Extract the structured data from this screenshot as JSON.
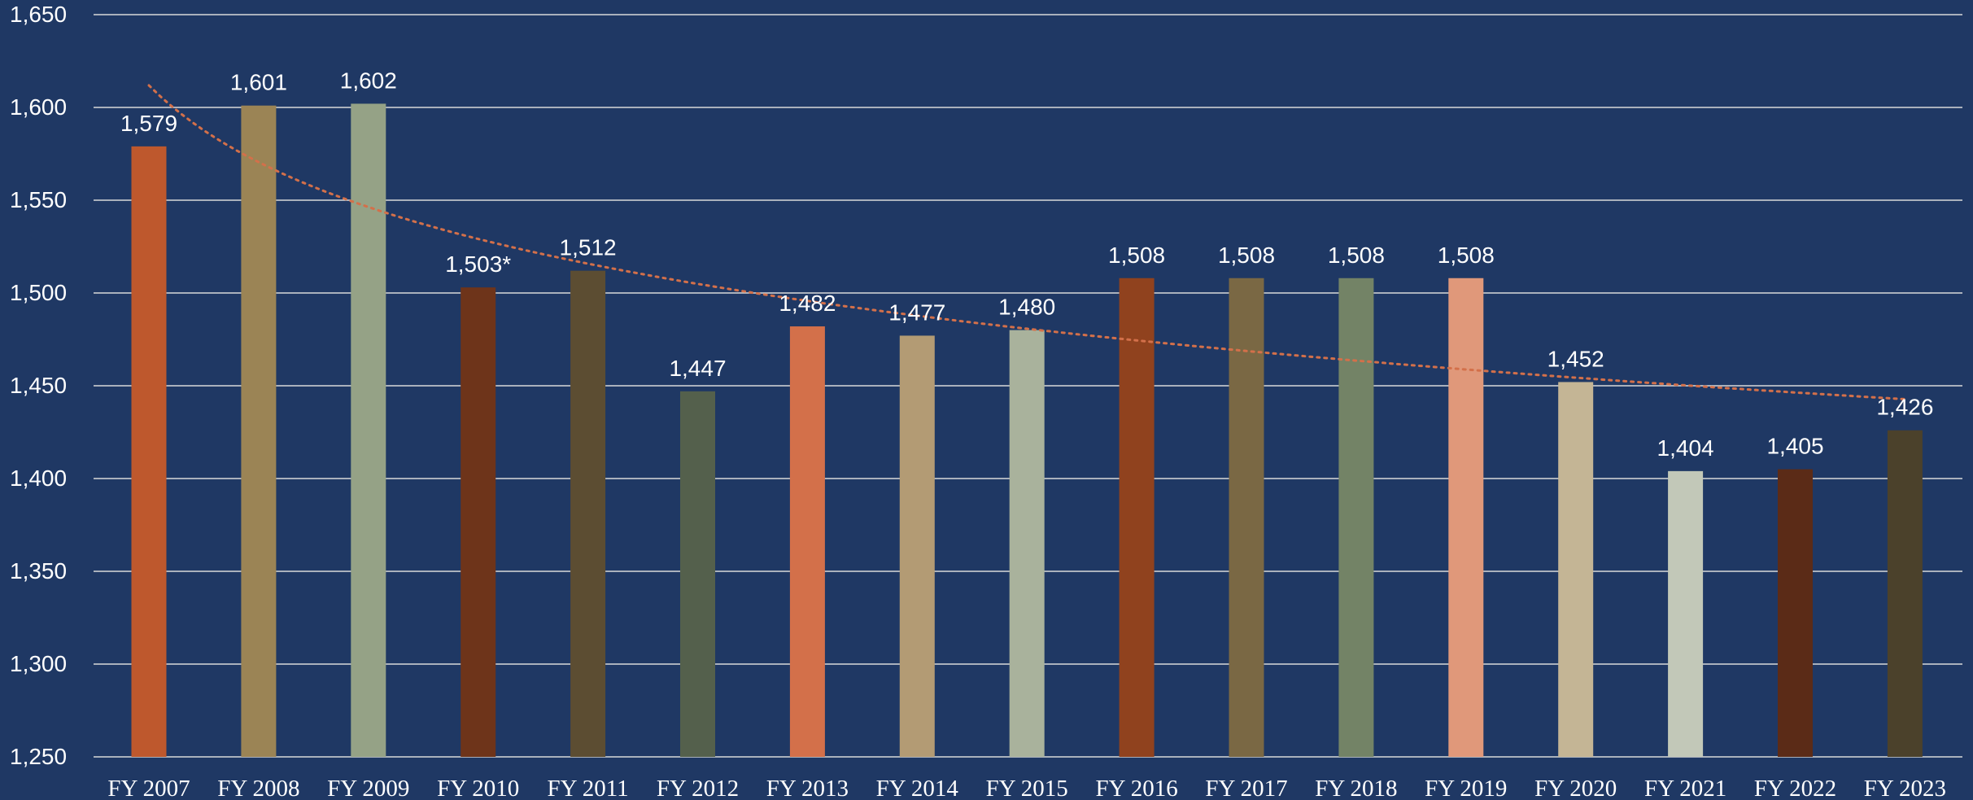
{
  "chart_data": {
    "type": "bar",
    "title": "",
    "xlabel": "",
    "ylabel": "",
    "categories": [
      "FY 2007",
      "FY 2008",
      "FY 2009",
      "FY 2010",
      "FY 2011",
      "FY 2012",
      "FY 2013",
      "FY 2014",
      "FY 2015",
      "FY 2016",
      "FY 2017",
      "FY 2018",
      "FY 2019",
      "FY 2020",
      "FY 2021",
      "FY 2022",
      "FY 2023"
    ],
    "values": [
      1579,
      1601,
      1602,
      1503,
      1512,
      1447,
      1482,
      1477,
      1480,
      1508,
      1508,
      1508,
      1508,
      1452,
      1404,
      1405,
      1426
    ],
    "data_labels": [
      "1,579",
      "1,601",
      "1,602",
      "1,503*",
      "1,512",
      "1,447",
      "1,482",
      "1,477",
      "1,480",
      "1,508",
      "1,508",
      "1,508",
      "1,508",
      "1,452",
      "1,404",
      "1,405",
      "1,426"
    ],
    "bar_colors": [
      "#be582d",
      "#9b8455",
      "#95a286",
      "#6e341a",
      "#5c4d32",
      "#54604c",
      "#d3704a",
      "#b39b74",
      "#a9b29c",
      "#90421e",
      "#7a6844",
      "#738366",
      "#e0987a",
      "#c4b595",
      "#c2c8b8",
      "#5b2b17",
      "#4b412b"
    ],
    "ylim": [
      1250,
      1650
    ],
    "yticks": [
      1250,
      1300,
      1350,
      1400,
      1450,
      1500,
      1550,
      1600,
      1650
    ],
    "ytick_labels": [
      "1,250",
      "1,300",
      "1,350",
      "1,400",
      "1,450",
      "1,500",
      "1,550",
      "1,600",
      "1,650"
    ],
    "grid": true,
    "trendline": {
      "type": "logarithmic",
      "style": "dotted",
      "color": "#d3704a"
    },
    "legend": "none",
    "background": "#1f3864"
  }
}
